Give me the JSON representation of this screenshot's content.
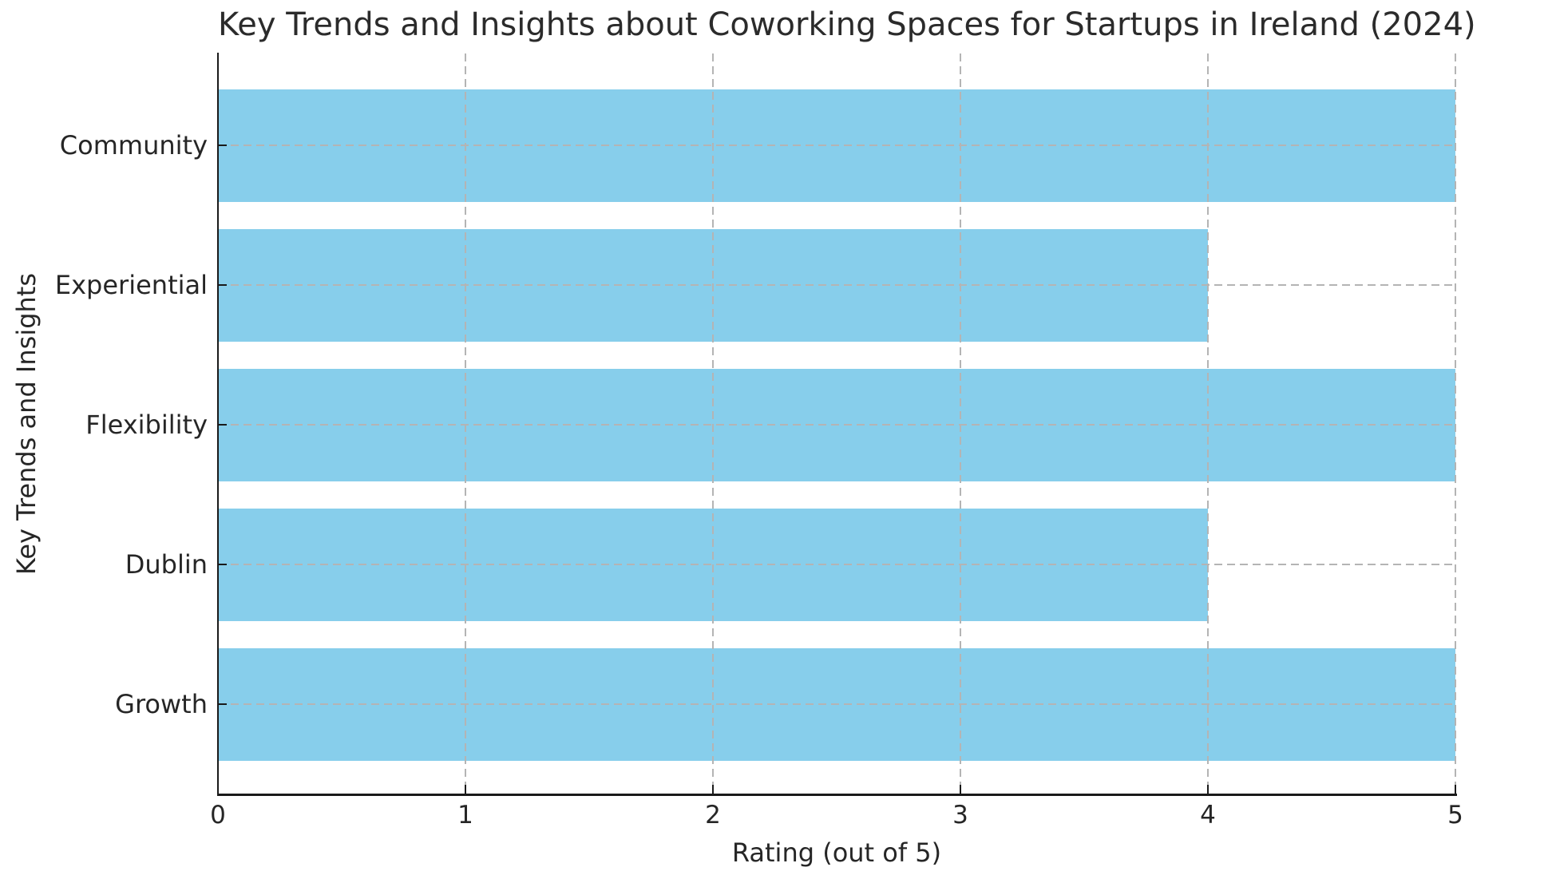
{
  "chart_data": {
    "type": "bar",
    "orientation": "horizontal",
    "title": "Key Trends and Insights about Coworking Spaces for Startups in Ireland (2024)",
    "xlabel": "Rating (out of 5)",
    "ylabel": "Key Trends and Insights",
    "categories": [
      "Community",
      "Experiential",
      "Flexibility",
      "Dublin",
      "Growth"
    ],
    "values": [
      5,
      4,
      5,
      4,
      5
    ],
    "x_ticks": [
      "0",
      "1",
      "2",
      "3",
      "4",
      "5"
    ],
    "xlim": [
      0,
      5
    ],
    "grid": "dashed, both axes, drawn over bars",
    "legend": "none",
    "bar_color": "#87CEEB",
    "grid_color": "#b4b4b4",
    "axis_color": "#1a1a1a",
    "text_color": "#262626",
    "background_color": "#ffffff"
  }
}
